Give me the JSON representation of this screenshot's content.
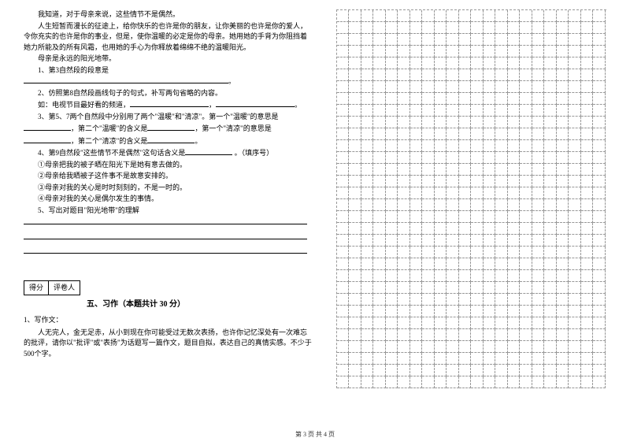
{
  "passage": {
    "p1": "我知道，对于母亲来说，这些情节不是偶然。",
    "p2": "人生短暂而漫长的征途上，给你快乐的也许是你的朋友，让你美丽的也许是你的爱人，令你充实的也许是你的事业，但是，使你温暖的必定是你的母亲。她用她的手背为你阻挡着她力所能及的所有风霜，也用她的手心为你释放着绵绵不绝的温暖阳光。",
    "p3": "母亲是永远的阳光地带。"
  },
  "questions": {
    "q1": "1、第3自然段的段意是",
    "q2": "2、仿照第8自然段画线句子的句式，补写两句省略的内容。",
    "q2ex": "如：电视节目最好看的频道，",
    "q3a": "3、第5、7两个自然段中分别用了两个\"温暖\"和\"清凉\"。第一个\"温暖\"的意思是",
    "q3b": "，第二个\"温暖\"的含义是",
    "q3c": "，第一个\"清凉\"的意思是",
    "q3d": "，第二个\"清凉\"的含义是",
    "q4": "4、第9自然段\"这些情节不是偶然\"这句话含义是",
    "q4tail": "。（填序号）",
    "q4o1": "①母亲把我的被子晒在阳光下是她有意去做的。",
    "q4o2": "②母亲给我晒被子这件事不是故意安排的。",
    "q4o3": "③母亲对我的关心是时时刻刻的，不是一时的。",
    "q4o4": "④母亲对我的关心是偶尔发生的事情。",
    "q5": "5、写出对题目\"阳光地带\"的理解"
  },
  "scorebox": {
    "c1": "得分",
    "c2": "评卷人"
  },
  "section5": {
    "title": "五、习作（本题共计 30 分）",
    "q1": "1、写作文：",
    "body": "人无完人，金无足赤，从小到现在你可能受过无数次表扬，也许你记忆深处有一次难忘的批评，请你以\"批评\"或\"表扬\"为话题写一篇作文，题目自拟，表达自己的真情实感。不少于500个字。"
  },
  "grid": {
    "cols": 22,
    "rows": 32
  },
  "pagenum": "第 3 页 共 4 页"
}
